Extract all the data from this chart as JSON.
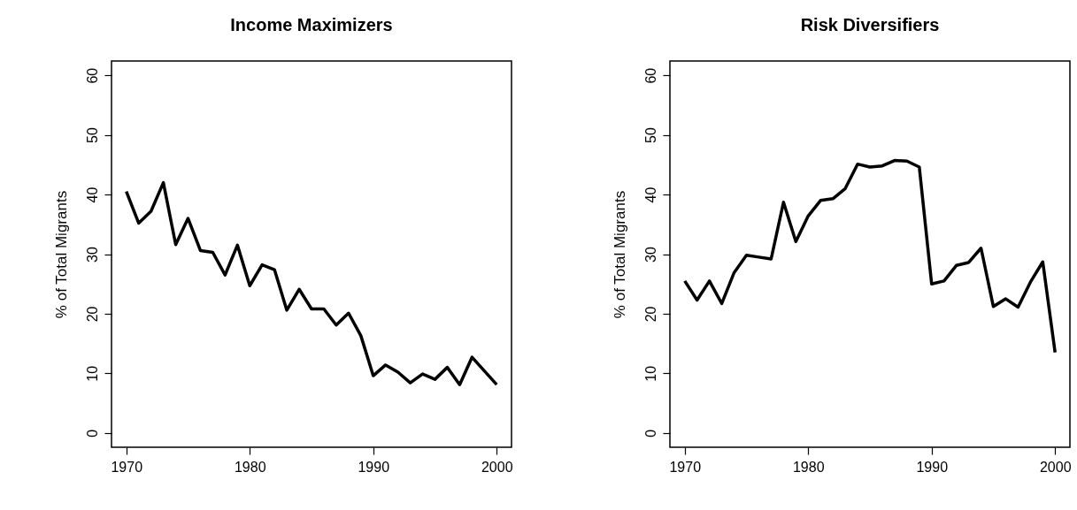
{
  "chart_data": [
    {
      "type": "line",
      "title": "Income Maximizers",
      "ylabel": "% of Total Migrants",
      "xlim": [
        1968.8,
        2001.2
      ],
      "ylim": [
        -2.4,
        62.4
      ],
      "xticks": [
        1970,
        1980,
        1990,
        2000
      ],
      "yticks": [
        0,
        10,
        20,
        30,
        40,
        50,
        60
      ],
      "x": [
        1970,
        1971,
        1972,
        1973,
        1974,
        1975,
        1976,
        1977,
        1978,
        1979,
        1980,
        1981,
        1982,
        1983,
        1984,
        1985,
        1986,
        1987,
        1988,
        1989,
        1990,
        1991,
        1992,
        1993,
        1994,
        1995,
        1996,
        1997,
        1998,
        1999,
        2000
      ],
      "series": [
        {
          "color": "#000000",
          "values": [
            40.5,
            35.2,
            37.2,
            42,
            31.6,
            36,
            30.6,
            30.3,
            26.5,
            31.5,
            24.7,
            28.2,
            27.4,
            20.6,
            24.1,
            20.8,
            20.8,
            18.1,
            20.1,
            16.3,
            9.6,
            11.4,
            10.2,
            8.4,
            9.9,
            9,
            11,
            8.1,
            12.7,
            10.4,
            8.1
          ]
        }
      ]
    },
    {
      "type": "line",
      "title": "Risk Diversifiers",
      "ylabel": "% of Total Migrants",
      "xlim": [
        1968.8,
        2001.2
      ],
      "ylim": [
        -2.4,
        62.4
      ],
      "xticks": [
        1970,
        1980,
        1990,
        2000
      ],
      "yticks": [
        0,
        10,
        20,
        30,
        40,
        50,
        60
      ],
      "x": [
        1970,
        1971,
        1972,
        1973,
        1974,
        1975,
        1976,
        1977,
        1978,
        1979,
        1980,
        1981,
        1982,
        1983,
        1984,
        1985,
        1986,
        1987,
        1988,
        1989,
        1990,
        1991,
        1992,
        1993,
        1994,
        1995,
        1996,
        1997,
        1998,
        1999,
        2000
      ],
      "series": [
        {
          "color": "#000000",
          "values": [
            25.5,
            22.3,
            25.5,
            21.7,
            26.9,
            29.8,
            29.5,
            29.2,
            38.7,
            32.1,
            36.4,
            39,
            39.3,
            41,
            45.1,
            44.6,
            44.8,
            45.7,
            45.6,
            44.6,
            25,
            25.5,
            28.1,
            28.6,
            31,
            21.2,
            22.5,
            21.1,
            25.3,
            28.7,
            13.5
          ]
        }
      ]
    }
  ]
}
